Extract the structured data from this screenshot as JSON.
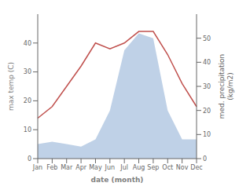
{
  "chart_data": {
    "type": "line",
    "categories": [
      "Jan",
      "Feb",
      "Mar",
      "Apr",
      "May",
      "Jun",
      "Jul",
      "Aug",
      "Sep",
      "Oct",
      "Nov",
      "Dec"
    ],
    "series": [
      {
        "type": "line",
        "color": "#c0504d",
        "values": [
          14,
          18,
          25,
          32,
          40,
          38,
          40,
          44,
          44,
          36,
          26,
          18
        ]
      },
      {
        "type": "area",
        "axis": "y2",
        "color": "#b8cce4",
        "values": [
          6,
          7,
          6,
          5,
          8,
          20,
          45,
          52,
          50,
          20,
          8,
          8
        ]
      }
    ],
    "xlabel": "date (month)",
    "ylabel": "max temp (C)",
    "y2label": "med. precipitation\n(kg/m2)",
    "ylim": [
      0,
      50
    ],
    "yticks": [
      0,
      10,
      20,
      30,
      40
    ],
    "y2lim": [
      0,
      60
    ],
    "y2ticks": [
      0,
      10,
      20,
      30,
      40,
      50
    ],
    "grid": false
  }
}
